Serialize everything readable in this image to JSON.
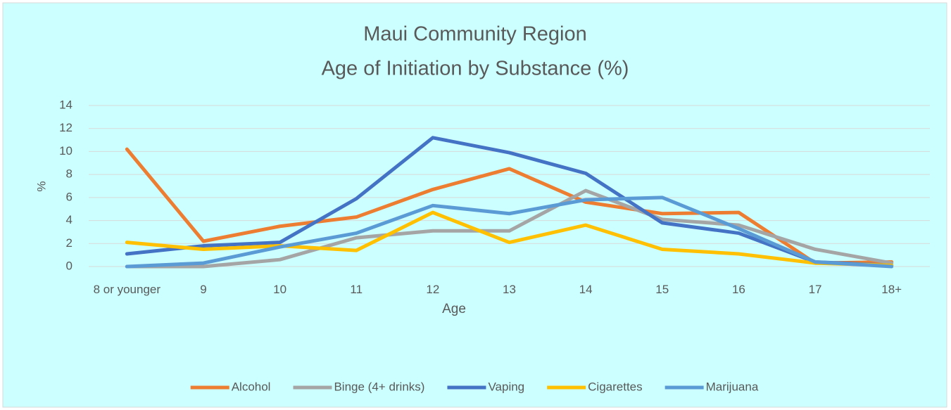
{
  "chart_data": {
    "type": "line",
    "title": "Maui Community Region",
    "subtitle": "Age of Initiation by Substance (%)",
    "x_label": "Age",
    "y_label": "%",
    "categories": [
      "8 or younger",
      "9",
      "10",
      "11",
      "12",
      "13",
      "14",
      "15",
      "16",
      "17",
      "18+"
    ],
    "series": [
      {
        "name": "Alcohol",
        "color": "#ed7d31",
        "values": [
          10.2,
          2.2,
          3.5,
          4.3,
          6.7,
          8.5,
          5.6,
          4.6,
          4.7,
          0.3,
          0.4
        ]
      },
      {
        "name": "Binge (4+ drinks)",
        "color": "#a5a5a5",
        "values": [
          0,
          0,
          0.6,
          2.5,
          3.1,
          3.1,
          6.6,
          4.1,
          3.6,
          1.5,
          0.3
        ]
      },
      {
        "name": "Vaping",
        "color": "#4472c4",
        "values": [
          1.1,
          1.8,
          2.1,
          5.9,
          11.2,
          9.9,
          8.1,
          3.8,
          2.9,
          0.4,
          0.1
        ]
      },
      {
        "name": "Cigarettes",
        "color": "#ffc000",
        "values": [
          2.1,
          1.5,
          1.8,
          1.4,
          4.7,
          2.1,
          3.6,
          1.5,
          1.1,
          0.3,
          0.1
        ]
      },
      {
        "name": "Marijuana",
        "color": "#5b9bd5",
        "values": [
          0,
          0.3,
          1.7,
          2.9,
          5.3,
          4.6,
          5.8,
          6.0,
          3.3,
          0.4,
          0
        ]
      }
    ],
    "ylim": [
      0,
      14
    ],
    "yticks": [
      0,
      2,
      4,
      6,
      8,
      10,
      12,
      14
    ],
    "grid": true,
    "legend": "bottom",
    "background": "#ccffff"
  }
}
